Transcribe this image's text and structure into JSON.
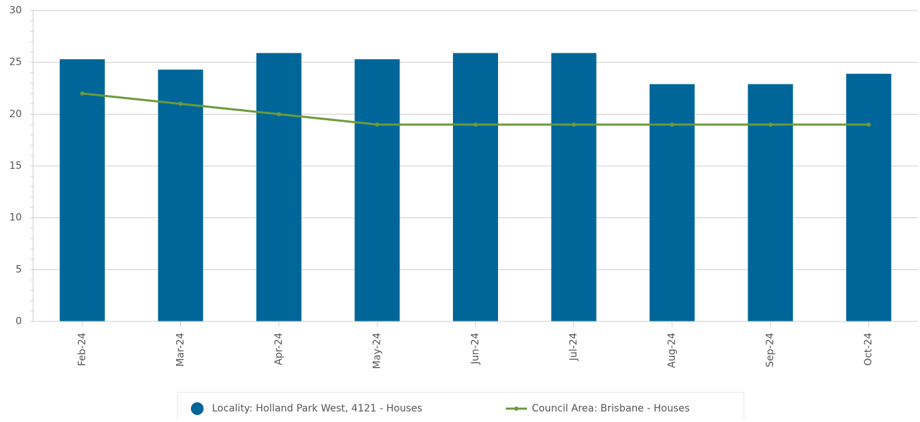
{
  "chart_data": {
    "type": "bar_line",
    "categories": [
      "Feb-24",
      "Mar-24",
      "Apr-24",
      "May-24",
      "Jun-24",
      "Jul-24",
      "Aug-24",
      "Sep-24",
      "Oct-24"
    ],
    "series": [
      {
        "name": "Locality: Holland Park West, 4121 - Houses",
        "type": "bar",
        "color": "#006699",
        "values": [
          25.3,
          24.3,
          25.9,
          25.3,
          25.9,
          25.9,
          22.9,
          22.9,
          23.9
        ]
      },
      {
        "name": "Council Area: Brisbane - Houses",
        "type": "line",
        "color": "#6a9a3a",
        "values": [
          22,
          21,
          20,
          19,
          19,
          19,
          19,
          19,
          19
        ]
      }
    ],
    "ylim": [
      0,
      30
    ],
    "yticks": [
      0,
      5,
      10,
      15,
      20,
      25,
      30
    ],
    "grid": true,
    "legend": "bottom"
  }
}
